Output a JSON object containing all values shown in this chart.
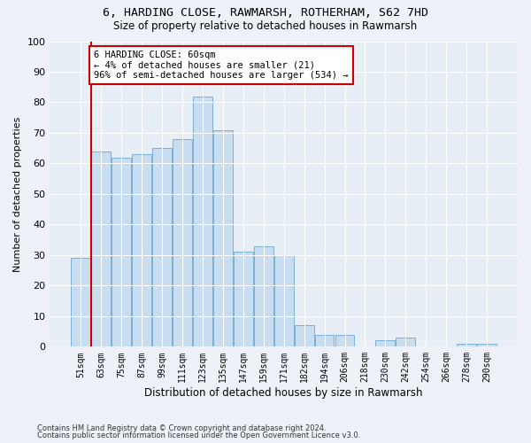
{
  "title1": "6, HARDING CLOSE, RAWMARSH, ROTHERHAM, S62 7HD",
  "title2": "Size of property relative to detached houses in Rawmarsh",
  "xlabel": "Distribution of detached houses by size in Rawmarsh",
  "ylabel": "Number of detached properties",
  "categories": [
    "51sqm",
    "63sqm",
    "75sqm",
    "87sqm",
    "99sqm",
    "111sqm",
    "123sqm",
    "135sqm",
    "147sqm",
    "159sqm",
    "171sqm",
    "182sqm",
    "194sqm",
    "206sqm",
    "218sqm",
    "230sqm",
    "242sqm",
    "254sqm",
    "266sqm",
    "278sqm",
    "290sqm"
  ],
  "values": [
    29,
    64,
    62,
    63,
    65,
    68,
    82,
    71,
    31,
    33,
    30,
    7,
    4,
    4,
    0,
    2,
    3,
    0,
    0,
    1,
    1
  ],
  "bar_color": "#c9ddf0",
  "bar_edge_color": "#7aafd4",
  "vline_color": "#cc0000",
  "vline_x_index": 1,
  "annotation_text": "6 HARDING CLOSE: 60sqm\n← 4% of detached houses are smaller (21)\n96% of semi-detached houses are larger (534) →",
  "annotation_box_color": "white",
  "annotation_edge_color": "#cc0000",
  "ylim": [
    0,
    100
  ],
  "yticks": [
    0,
    10,
    20,
    30,
    40,
    50,
    60,
    70,
    80,
    90,
    100
  ],
  "footnote1": "Contains HM Land Registry data © Crown copyright and database right 2024.",
  "footnote2": "Contains public sector information licensed under the Open Government Licence v3.0.",
  "background_color": "#eef2f8",
  "plot_bg_color": "#e8eef6"
}
